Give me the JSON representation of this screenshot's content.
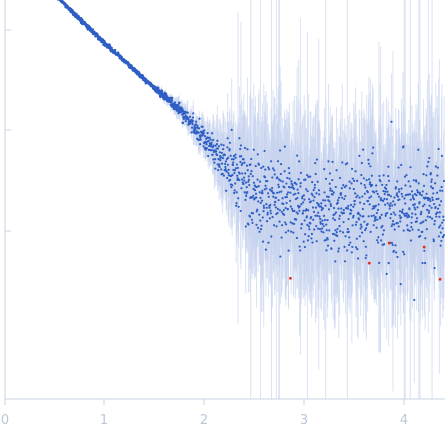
{
  "chart_data": {
    "type": "scatter",
    "title": "",
    "xlabel": "",
    "ylabel": "",
    "x_ticks": [
      "0",
      "1",
      "2",
      "3",
      "4"
    ],
    "xlim": [
      0,
      4.4
    ],
    "ylim": [
      0,
      3.7
    ],
    "y_ticks": [
      1,
      2,
      3
    ],
    "y_scale": "log",
    "grid": false,
    "legend": "none",
    "colors": {
      "points": "#2f5fc4",
      "error_bars": "#c6d3ee",
      "outliers": "#e0301e",
      "axis": "#c9d3e3",
      "tick_text": "#bcc6d8"
    },
    "trend": [
      {
        "x": 0.12,
        "y": 3.72
      },
      {
        "x": 0.2,
        "y": 3.64
      },
      {
        "x": 0.5,
        "y": 3.35
      },
      {
        "x": 1.0,
        "y": 2.87
      },
      {
        "x": 1.5,
        "y": 2.42
      },
      {
        "x": 1.8,
        "y": 2.16
      },
      {
        "x": 2.0,
        "y": 1.9
      },
      {
        "x": 2.2,
        "y": 1.68
      },
      {
        "x": 2.4,
        "y": 1.48
      },
      {
        "x": 2.6,
        "y": 1.37
      },
      {
        "x": 2.8,
        "y": 1.3
      },
      {
        "x": 3.0,
        "y": 1.26
      },
      {
        "x": 3.5,
        "y": 1.24
      },
      {
        "x": 4.0,
        "y": 1.25
      },
      {
        "x": 4.4,
        "y": 1.28
      }
    ],
    "outliers": [
      {
        "x": 2.86,
        "y": 0.53
      },
      {
        "x": 3.65,
        "y": 0.68
      },
      {
        "x": 3.85,
        "y": 0.88
      },
      {
        "x": 4.2,
        "y": 0.84
      },
      {
        "x": 4.36,
        "y": 0.52
      }
    ]
  }
}
